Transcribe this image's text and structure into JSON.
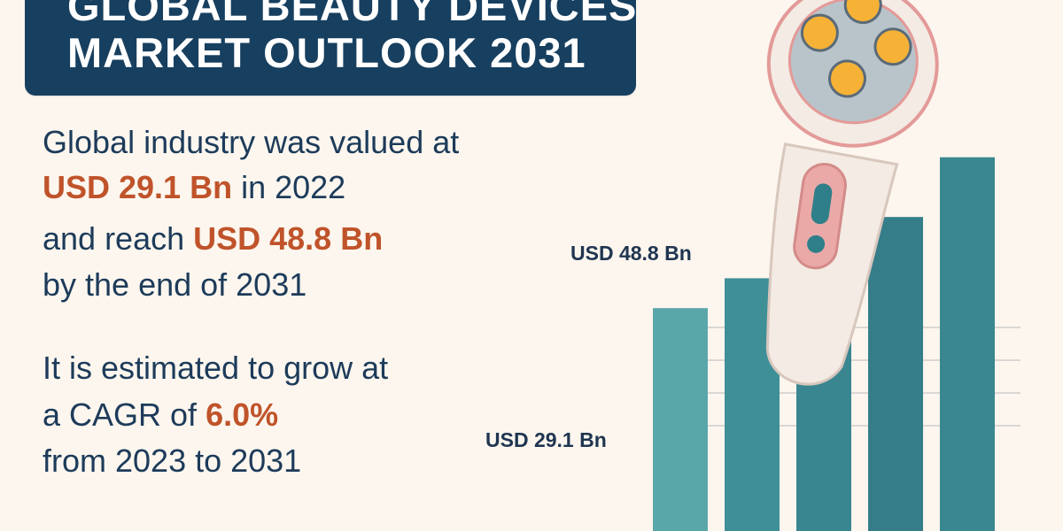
{
  "banner": {
    "line1": "GLOBAL BEAUTY DEVICES",
    "line2": "MARKET OUTLOOK 2031"
  },
  "value_statement": {
    "line1": "Global industry was valued at",
    "value_2022": "USD 29.1 Bn",
    "line2_suffix": " in 2022",
    "line3_prefix": "and reach ",
    "value_2031": "USD 48.8 Bn",
    "line4": "by the end of 2031"
  },
  "growth_statement": {
    "line1": "It is estimated to grow at",
    "line2_prefix": "a CAGR of ",
    "cagr": "6.0%",
    "line3": "from 2023 to 2031"
  },
  "chart_data": {
    "type": "bar",
    "values": [
      29.1,
      33,
      36,
      41,
      48.8
    ],
    "annotations": [
      {
        "text": "USD 29.1 Bn",
        "bar_index": 0
      },
      {
        "text": "USD 48.8 Bn",
        "bar_index": 4
      }
    ],
    "colors": [
      "#5aa7aa",
      "#3f8f97",
      "#3a8690",
      "#357d88",
      "#3a8790"
    ],
    "ylim": [
      0,
      52
    ],
    "grid": true
  },
  "colors": {
    "banner": "#173f5f",
    "accent": "#c0532a",
    "background": "#fcf6ee",
    "text": "#1d3b5a"
  },
  "illustration": {
    "icon": "beauty-device-icon"
  }
}
